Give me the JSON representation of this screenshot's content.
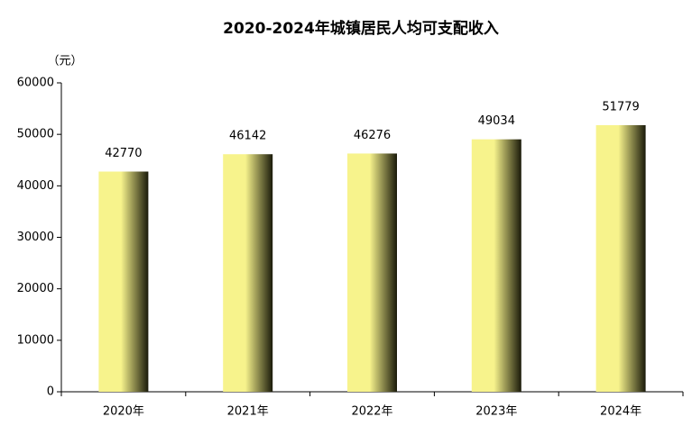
{
  "chart_data": {
    "type": "bar",
    "title": "2020-2024年城镇居民人均可支配收入",
    "y_label": "（元）",
    "categories": [
      "2020年",
      "2021年",
      "2022年",
      "2023年",
      "2024年"
    ],
    "values": [
      42770,
      46142,
      46276,
      49034,
      51779
    ],
    "color": "#f7f38c",
    "ylim": [
      0,
      60000
    ],
    "yticks": [
      0,
      10000,
      20000,
      30000,
      40000,
      50000,
      60000
    ],
    "grid": false
  }
}
